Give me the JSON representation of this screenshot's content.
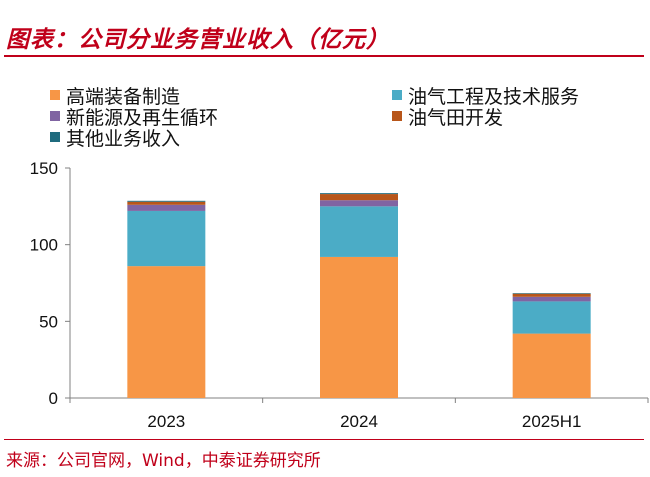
{
  "figure": {
    "title": "图表：公司分业务营业收入（亿元）",
    "source": "来源：公司官网，Wind，中泰证券研究所"
  },
  "colors": {
    "accent": "#c0001a",
    "axis": "#808080"
  },
  "chart_data": {
    "type": "bar",
    "stacked": true,
    "title": "",
    "xlabel": "",
    "ylabel": "",
    "ylim": [
      0,
      150
    ],
    "yticks": [
      0,
      50,
      100,
      150
    ],
    "categories": [
      "2023",
      "2024",
      "2025H1"
    ],
    "series": [
      {
        "name": "高端装备制造",
        "color": "#f79646",
        "values": [
          86,
          92,
          42
        ]
      },
      {
        "name": "油气工程及技术服务",
        "color": "#4bacc6",
        "values": [
          36,
          33,
          21
        ]
      },
      {
        "name": "新能源及再生循环",
        "color": "#8064a2",
        "values": [
          4,
          4,
          3
        ]
      },
      {
        "name": "油气田开发",
        "color": "#b8561a",
        "values": [
          2,
          4,
          2
        ]
      },
      {
        "name": "其他业务收入",
        "color": "#1f6b7e",
        "values": [
          0.6,
          0.6,
          0.4
        ]
      }
    ],
    "legend": "top"
  }
}
